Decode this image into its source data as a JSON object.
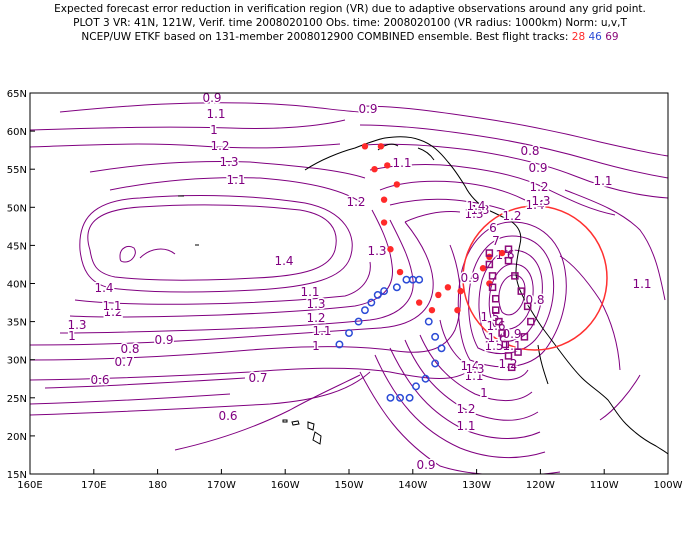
{
  "header": {
    "line1": "Expected forecast error reduction in verification region (VR) due to adaptive observations around any grid point.",
    "line2": "PLOT 3 VR: 41N, 121W, Verif. time 2008020100 Obs. time: 2008020100 (VR radius: 1000km) Norm: u,v,T",
    "line3_prefix": "NCEP/UW ETKF based on 131-member 2008012900 COMBINED ensemble.  Best flight tracks:",
    "track_labels": [
      {
        "text": "28",
        "color": "#ff2a2a"
      },
      {
        "text": "46",
        "color": "#2b4bd6"
      },
      {
        "text": "69",
        "color": "#8b0a7a"
      }
    ]
  },
  "map": {
    "lon_ticks": [
      "160E",
      "170E",
      "180",
      "170W",
      "160W",
      "150W",
      "140W",
      "130W",
      "120W",
      "110W",
      "100W"
    ],
    "lat_ticks": [
      "65N",
      "60N",
      "55N",
      "50N",
      "45N",
      "40N",
      "35N",
      "30N",
      "25N",
      "20N",
      "15N"
    ],
    "contour_color": "#800080",
    "vr_circle_color": "#ff3030",
    "contour_labels": [
      "0.9",
      "0.9",
      "0.8",
      "0.9",
      "1.1",
      "1.2",
      "1.3",
      "1.4",
      "1.1",
      "1",
      "1.2",
      "1.3",
      "1.1",
      "1.3",
      "1.4",
      "1.4",
      "1.2",
      "1.3",
      "1.1",
      "1.3",
      "1.2",
      "1.1",
      "1",
      "0.9",
      "1",
      "0.8",
      "0.7",
      "0.6",
      "0.7",
      "0.6",
      "0.9",
      "1.1",
      "1.2",
      "1",
      "1.1",
      "0.8",
      "0.9",
      "1.4",
      "1.5",
      "1.6",
      "1.5",
      "1.3",
      "1.2",
      "1.1",
      "0.9",
      "1.3",
      "1.4",
      "1.6",
      "7",
      "6",
      "1.6",
      "1.2",
      "1.1",
      "1.1",
      "1.2",
      "1.3",
      "1.1"
    ],
    "tracks": [
      {
        "name": "track-28",
        "color": "#ff2a2a",
        "points": [
          [
            -147.5,
            58
          ],
          [
            -145,
            58
          ],
          [
            -146,
            55
          ],
          [
            -144,
            55.5
          ],
          [
            -142.5,
            53
          ],
          [
            -144.5,
            51
          ],
          [
            -144.5,
            48
          ],
          [
            -143.5,
            44.5
          ],
          [
            -142,
            41.5
          ],
          [
            -139,
            37.5
          ],
          [
            -136,
            38.5
          ],
          [
            -133,
            36.5
          ],
          [
            -137,
            36.5
          ],
          [
            -134.5,
            39.5
          ],
          [
            -132.5,
            39
          ],
          [
            -128,
            43.5
          ],
          [
            -126,
            44
          ],
          [
            -129,
            42
          ],
          [
            -128,
            40
          ]
        ]
      },
      {
        "name": "track-46",
        "color": "#2b4bd6",
        "points": [
          [
            -151.5,
            32
          ],
          [
            -150,
            33.5
          ],
          [
            -148.5,
            35
          ],
          [
            -147.5,
            36.5
          ],
          [
            -146.5,
            37.5
          ],
          [
            -145.5,
            38.5
          ],
          [
            -144.5,
            39
          ],
          [
            -142.5,
            39.5
          ],
          [
            -141,
            40.5
          ],
          [
            -140,
            40.5
          ],
          [
            -139,
            40.5
          ],
          [
            -137.5,
            35
          ],
          [
            -136.5,
            33
          ],
          [
            -135.5,
            31.5
          ],
          [
            -136.5,
            29.5
          ],
          [
            -138,
            27.5
          ],
          [
            -139.5,
            26.5
          ],
          [
            -140.5,
            25
          ],
          [
            -142,
            25
          ],
          [
            -143.5,
            25
          ]
        ]
      },
      {
        "name": "track-69",
        "color": "#8b0a7a",
        "points": [
          [
            -128,
            44
          ],
          [
            -128,
            42.5
          ],
          [
            -127.5,
            41
          ],
          [
            -127.5,
            39.5
          ],
          [
            -127,
            38
          ],
          [
            -127,
            36.5
          ],
          [
            -126.5,
            35
          ],
          [
            -126,
            33.5
          ],
          [
            -125.5,
            32
          ],
          [
            -125,
            30.5
          ],
          [
            -124.5,
            29
          ],
          [
            -123.5,
            31
          ],
          [
            -122.5,
            33
          ],
          [
            -121.5,
            35
          ],
          [
            -122,
            37
          ],
          [
            -123,
            39
          ],
          [
            -124,
            41
          ],
          [
            -125,
            43
          ],
          [
            -125,
            44.5
          ]
        ]
      }
    ]
  }
}
